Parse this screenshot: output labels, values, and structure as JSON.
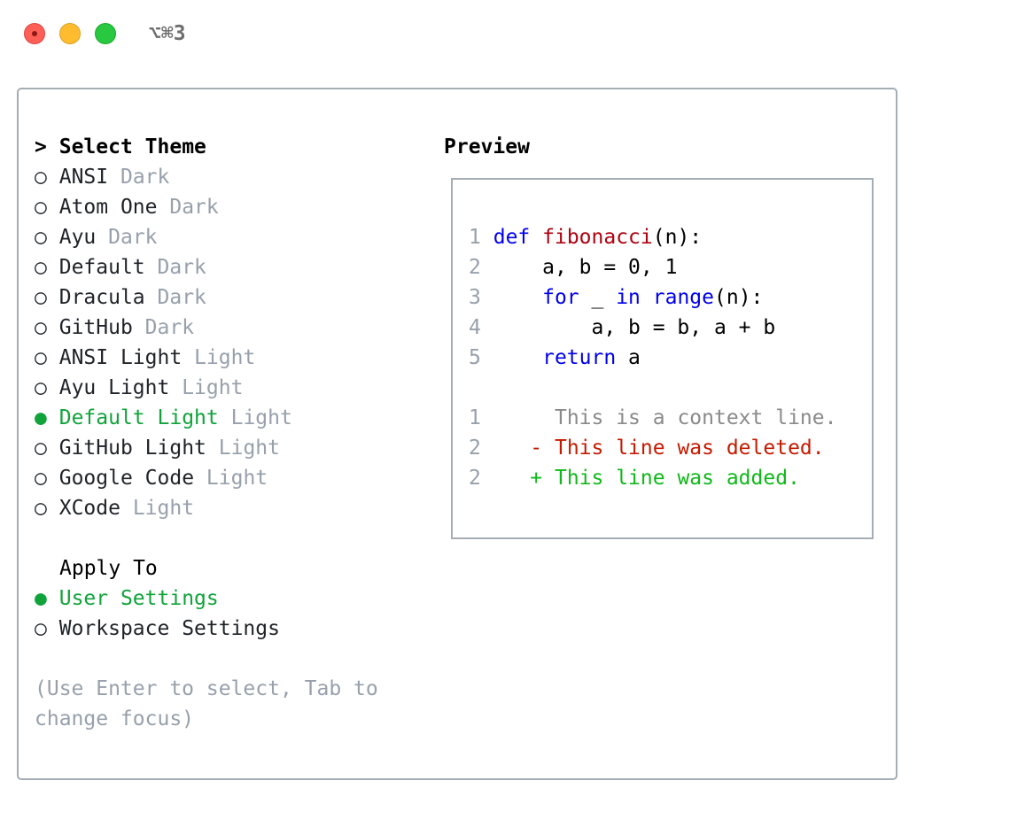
{
  "titlebar": {
    "shortcut": "⌥⌘3"
  },
  "themes": {
    "heading_prefix": ">",
    "heading": "Select Theme",
    "items": [
      {
        "name": "ANSI",
        "type": "Dark",
        "selected": false
      },
      {
        "name": "Atom One",
        "type": "Dark",
        "selected": false
      },
      {
        "name": "Ayu",
        "type": "Dark",
        "selected": false
      },
      {
        "name": "Default",
        "type": "Dark",
        "selected": false
      },
      {
        "name": "Dracula",
        "type": "Dark",
        "selected": false
      },
      {
        "name": "GitHub",
        "type": "Dark",
        "selected": false
      },
      {
        "name": "ANSI Light",
        "type": "Light",
        "selected": false
      },
      {
        "name": "Ayu Light",
        "type": "Light",
        "selected": false
      },
      {
        "name": "Default Light",
        "type": "Light",
        "selected": true
      },
      {
        "name": "GitHub Light",
        "type": "Light",
        "selected": false
      },
      {
        "name": "Google Code",
        "type": "Light",
        "selected": false
      },
      {
        "name": "XCode",
        "type": "Light",
        "selected": false
      }
    ]
  },
  "apply_to": {
    "heading": "Apply To",
    "items": [
      {
        "name": "User Settings",
        "selected": true
      },
      {
        "name": "Workspace Settings",
        "selected": false
      }
    ]
  },
  "hint": {
    "line1": "(Use Enter to select, Tab to",
    "line2": "change focus)"
  },
  "preview": {
    "heading": "Preview",
    "code": [
      {
        "n": "1",
        "parts": [
          [
            "kw",
            "def"
          ],
          [
            "code",
            " "
          ],
          [
            "fn",
            "fibonacci"
          ],
          [
            "code",
            "(n):"
          ]
        ]
      },
      {
        "n": "2",
        "parts": [
          [
            "code",
            "    a, b = 0, 1"
          ]
        ]
      },
      {
        "n": "3",
        "parts": [
          [
            "code",
            "    "
          ],
          [
            "kw",
            "for"
          ],
          [
            "code",
            " _ "
          ],
          [
            "kw",
            "in"
          ],
          [
            "code",
            " "
          ],
          [
            "kw",
            "range"
          ],
          [
            "code",
            "(n):"
          ]
        ]
      },
      {
        "n": "4",
        "parts": [
          [
            "code",
            "        a, b = b, a + b"
          ]
        ]
      },
      {
        "n": "5",
        "parts": [
          [
            "code",
            "    "
          ],
          [
            "kw",
            "return"
          ],
          [
            "code",
            " a"
          ]
        ]
      }
    ],
    "diff": [
      {
        "n": "1",
        "marker": " ",
        "text": "This is a context line.",
        "kind": "ctx"
      },
      {
        "n": "2",
        "marker": "-",
        "text": "This line was deleted.",
        "kind": "del"
      },
      {
        "n": "2",
        "marker": "+",
        "text": "This line was added.",
        "kind": "add"
      }
    ]
  },
  "colors": {
    "selected": "#10a33a",
    "keyword": "#0000ee",
    "function": "#b00010",
    "deleted": "#c41a00",
    "added": "#10b81a"
  }
}
